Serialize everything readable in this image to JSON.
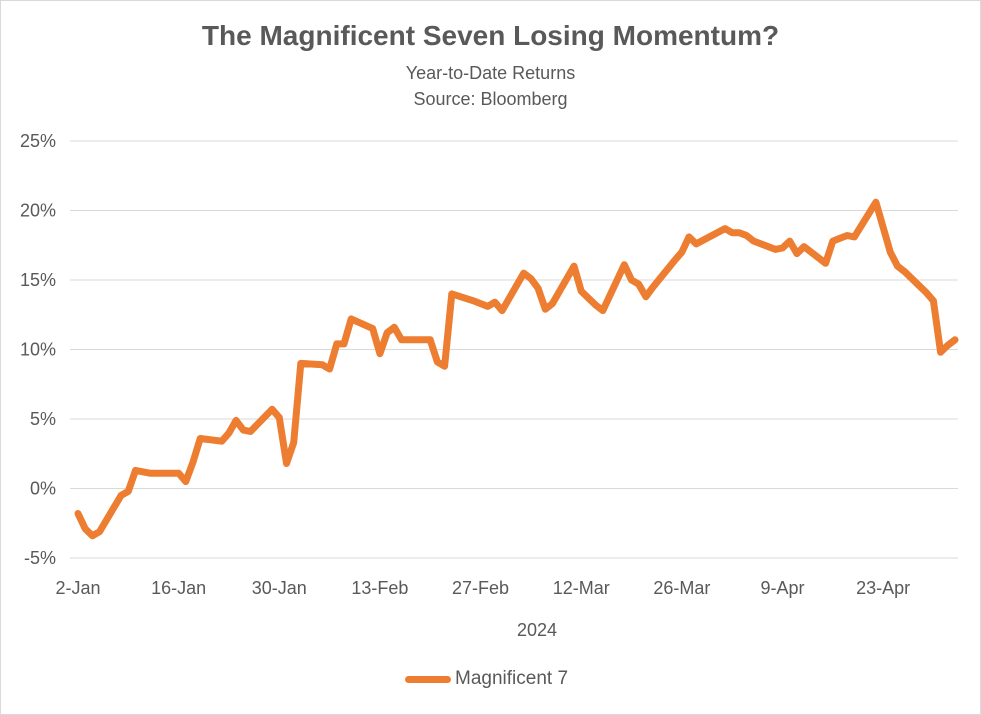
{
  "chart_data": {
    "type": "line",
    "title": "The Magnificent Seven Losing Momentum?",
    "subtitle": [
      "Year-to-Date Returns",
      "Source: Bloomberg"
    ],
    "xlabel": "2024",
    "ylabel": "",
    "ylim": [
      -5,
      25
    ],
    "yticks": [
      "-5%",
      "0%",
      "5%",
      "10%",
      "15%",
      "20%",
      "25%"
    ],
    "ytick_values": [
      -5,
      0,
      5,
      10,
      15,
      20,
      25
    ],
    "xticks": [
      "2-Jan",
      "16-Jan",
      "30-Jan",
      "13-Feb",
      "27-Feb",
      "12-Mar",
      "26-Mar",
      "9-Apr",
      "23-Apr"
    ],
    "x_range": [
      "2024-01-02",
      "2024-05-03"
    ],
    "grid": true,
    "legend_position": "bottom",
    "series": [
      {
        "name": "Magnificent 7",
        "color": "#ED7D31",
        "points": [
          [
            "2024-01-02",
            -1.8
          ],
          [
            "2024-01-03",
            -2.9
          ],
          [
            "2024-01-04",
            -3.4
          ],
          [
            "2024-01-05",
            -3.1
          ],
          [
            "2024-01-08",
            -0.5
          ],
          [
            "2024-01-09",
            -0.2
          ],
          [
            "2024-01-10",
            1.3
          ],
          [
            "2024-01-11",
            1.2
          ],
          [
            "2024-01-12",
            1.1
          ],
          [
            "2024-01-16",
            1.1
          ],
          [
            "2024-01-17",
            0.5
          ],
          [
            "2024-01-18",
            1.9
          ],
          [
            "2024-01-19",
            3.6
          ],
          [
            "2024-01-22",
            3.4
          ],
          [
            "2024-01-23",
            4.0
          ],
          [
            "2024-01-24",
            4.9
          ],
          [
            "2024-01-25",
            4.2
          ],
          [
            "2024-01-26",
            4.1
          ],
          [
            "2024-01-29",
            5.7
          ],
          [
            "2024-01-30",
            5.1
          ],
          [
            "2024-01-31",
            1.8
          ],
          [
            "2024-02-01",
            3.3
          ],
          [
            "2024-02-02",
            9.0
          ],
          [
            "2024-02-05",
            8.9
          ],
          [
            "2024-02-06",
            8.6
          ],
          [
            "2024-02-07",
            10.4
          ],
          [
            "2024-02-08",
            10.4
          ],
          [
            "2024-02-09",
            12.2
          ],
          [
            "2024-02-12",
            11.5
          ],
          [
            "2024-02-13",
            9.7
          ],
          [
            "2024-02-14",
            11.2
          ],
          [
            "2024-02-15",
            11.6
          ],
          [
            "2024-02-16",
            10.7
          ],
          [
            "2024-02-20",
            10.7
          ],
          [
            "2024-02-21",
            9.1
          ],
          [
            "2024-02-22",
            8.8
          ],
          [
            "2024-02-23",
            14.0
          ],
          [
            "2024-02-26",
            13.5
          ],
          [
            "2024-02-27",
            13.3
          ],
          [
            "2024-02-28",
            13.1
          ],
          [
            "2024-02-29",
            13.4
          ],
          [
            "2024-03-01",
            12.8
          ],
          [
            "2024-03-04",
            15.5
          ],
          [
            "2024-03-05",
            15.1
          ],
          [
            "2024-03-06",
            14.4
          ],
          [
            "2024-03-07",
            12.9
          ],
          [
            "2024-03-08",
            13.3
          ],
          [
            "2024-03-11",
            16.0
          ],
          [
            "2024-03-12",
            14.2
          ],
          [
            "2024-03-13",
            13.7
          ],
          [
            "2024-03-14",
            13.2
          ],
          [
            "2024-03-15",
            12.8
          ],
          [
            "2024-03-18",
            16.1
          ],
          [
            "2024-03-19",
            15.0
          ],
          [
            "2024-03-20",
            14.7
          ],
          [
            "2024-03-21",
            13.8
          ],
          [
            "2024-03-22",
            14.5
          ],
          [
            "2024-03-25",
            16.4
          ],
          [
            "2024-03-26",
            17.0
          ],
          [
            "2024-03-27",
            18.1
          ],
          [
            "2024-03-28",
            17.6
          ],
          [
            "2024-04-01",
            18.7
          ],
          [
            "2024-04-02",
            18.4
          ],
          [
            "2024-04-03",
            18.4
          ],
          [
            "2024-04-04",
            18.2
          ],
          [
            "2024-04-05",
            17.8
          ],
          [
            "2024-04-08",
            17.2
          ],
          [
            "2024-04-09",
            17.3
          ],
          [
            "2024-04-10",
            17.8
          ],
          [
            "2024-04-11",
            16.9
          ],
          [
            "2024-04-12",
            17.4
          ],
          [
            "2024-04-15",
            16.2
          ],
          [
            "2024-04-16",
            17.8
          ],
          [
            "2024-04-17",
            18.0
          ],
          [
            "2024-04-18",
            18.2
          ],
          [
            "2024-04-19",
            18.1
          ],
          [
            "2024-04-22",
            20.6
          ],
          [
            "2024-04-23",
            18.8
          ],
          [
            "2024-04-24",
            17.0
          ],
          [
            "2024-04-25",
            16.0
          ],
          [
            "2024-04-26",
            15.6
          ],
          [
            "2024-04-29",
            14.1
          ],
          [
            "2024-04-30",
            13.5
          ],
          [
            "2024-05-01",
            9.8
          ],
          [
            "2024-05-02",
            10.3
          ],
          [
            "2024-05-03",
            10.7
          ]
        ]
      }
    ]
  }
}
